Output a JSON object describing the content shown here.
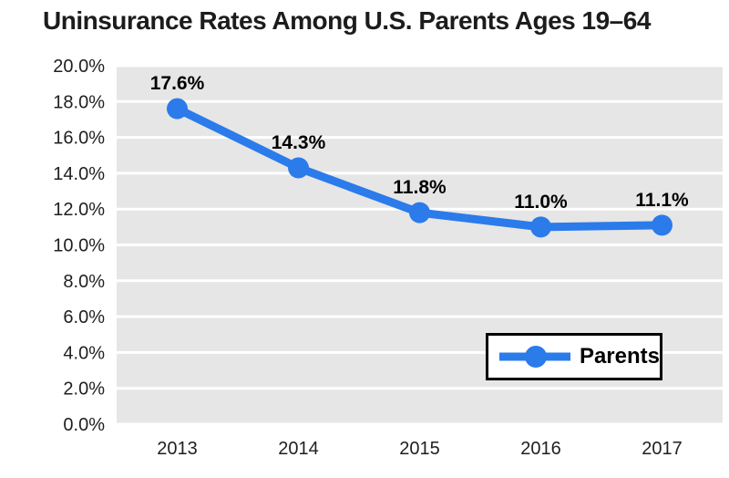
{
  "title": "Uninsurance Rates Among U.S. Parents Ages 19–64",
  "legend": {
    "label": "Parents"
  },
  "chart_data": {
    "type": "line",
    "title": "Uninsurance Rates Among U.S. Parents Ages 19–64",
    "categories": [
      "2013",
      "2014",
      "2015",
      "2016",
      "2017"
    ],
    "series": [
      {
        "name": "Parents",
        "values": [
          17.6,
          14.3,
          11.8,
          11.0,
          11.1
        ],
        "labels": [
          "17.6%",
          "14.3%",
          "11.8%",
          "11.0%",
          "11.1%"
        ],
        "color": "#2b7bea"
      }
    ],
    "xlabel": "",
    "ylabel": "",
    "ylim": [
      0,
      20
    ],
    "ytick_step": 2,
    "ytick_labels": [
      "0.0%",
      "2.0%",
      "4.0%",
      "6.0%",
      "8.0%",
      "10.0%",
      "12.0%",
      "14.0%",
      "16.0%",
      "18.0%",
      "20.0%"
    ],
    "grid": "horizontal",
    "legend_position": "inside-bottom-right",
    "colors": {
      "plot_bg": "#e6e6e6",
      "grid_line": "#ffffff",
      "tick_text": "#1f1f1f",
      "data_label_text": "#000000",
      "series_blue": "#2b7bea",
      "legend_border": "#000000",
      "legend_bg": "#ffffff"
    }
  }
}
